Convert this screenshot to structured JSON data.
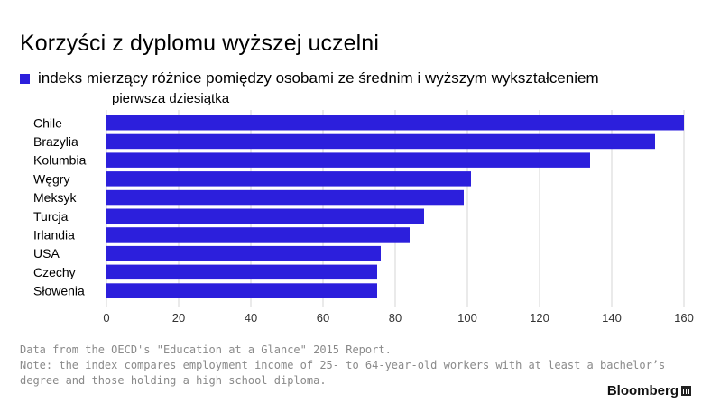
{
  "title": "Korzyści z dyplomu wyższej uczelni",
  "legend": {
    "label": "indeks mierzący różnice pomiędzy osobami ze średnim i wyższym wykształceniem",
    "color": "#2c1fdc"
  },
  "subtitle": "pierwsza dziesiątka",
  "source": {
    "line1": "Data from the OECD's \"Education at a Glance\" 2015 Report.",
    "line2": "Note: the index compares employment income of 25- to 64-year-old workers with at least a bachelor’s",
    "line3": "degree and those holding a high school diploma."
  },
  "brand": "Bloomberg",
  "chart_data": {
    "type": "bar",
    "orientation": "horizontal",
    "categories": [
      "Chile",
      "Brazylia",
      "Kolumbia",
      "Węgry",
      "Meksyk",
      "Turcja",
      "Irlandia",
      "USA",
      "Czechy",
      "Słowenia"
    ],
    "values": [
      161,
      152,
      134,
      101,
      99,
      88,
      84,
      76,
      75,
      75
    ],
    "xlim": [
      0,
      160
    ],
    "xticks": [
      0,
      20,
      40,
      60,
      80,
      100,
      120,
      140,
      160
    ],
    "grid": true,
    "bar_color": "#2c1fdc"
  }
}
